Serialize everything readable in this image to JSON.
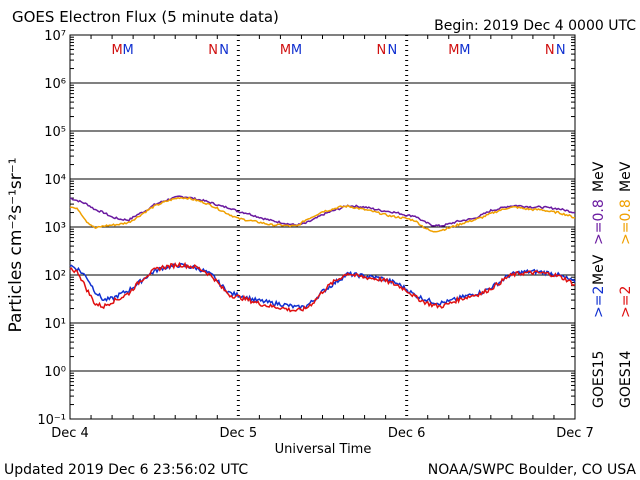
{
  "header": {
    "title": "GOES Electron Flux (5 minute data)",
    "begin": "Begin: 2019 Dec 4 0000 UTC"
  },
  "footer": {
    "updated": "Updated 2019 Dec  6 23:56:02 UTC",
    "credit": "NOAA/SWPC Boulder, CO USA"
  },
  "axes": {
    "ylabel": "Particles cm⁻²s⁻¹sr⁻¹",
    "xlabel": "Universal Time",
    "xticks": [
      "Dec 4",
      "Dec 5",
      "Dec 6",
      "Dec 7"
    ]
  },
  "markers": {
    "M": "M",
    "N": "N",
    "colors": [
      "#d01010",
      "#1030d0"
    ]
  },
  "legend": {
    "goes15": "GOES15",
    "goes14": "GOES14",
    "e2_15": ">=2",
    "e2_14": ">=2",
    "mev2": "MeV",
    "e08_15": ">=0.8",
    "e08_14": ">=0.8",
    "mev08": "MeV"
  },
  "colors": {
    "goes15_08": "#6a1aa0",
    "goes14_08": "#f0a000",
    "goes15_2": "#1030d0",
    "goes14_2": "#e01010",
    "threshold": "#000000"
  },
  "chart_data": {
    "type": "line",
    "title": "GOES Electron Flux (5 minute data)",
    "xlabel": "Universal Time",
    "ylabel": "Particles cm-2 s-1 sr-1",
    "yscale": "log",
    "ylim": [
      0.1,
      10000000
    ],
    "xlim_days": [
      0,
      3
    ],
    "x_tick_labels": [
      "Dec 4",
      "Dec 5",
      "Dec 6",
      "Dec 7"
    ],
    "y_tick_labels": [
      "10⁻¹",
      "10⁰",
      "10¹",
      "10²",
      "10³",
      "10⁴",
      "10⁵",
      "10⁶",
      "10⁷"
    ],
    "threshold": 1000,
    "x": [
      0,
      0.05,
      0.1,
      0.15,
      0.2,
      0.25,
      0.3,
      0.35,
      0.4,
      0.45,
      0.5,
      0.55,
      0.6,
      0.65,
      0.7,
      0.75,
      0.8,
      0.85,
      0.9,
      0.95,
      1.0,
      1.05,
      1.1,
      1.15,
      1.2,
      1.25,
      1.3,
      1.35,
      1.4,
      1.45,
      1.5,
      1.55,
      1.6,
      1.65,
      1.7,
      1.75,
      1.8,
      1.85,
      1.9,
      1.95,
      2.0,
      2.05,
      2.1,
      2.15,
      2.2,
      2.25,
      2.3,
      2.35,
      2.4,
      2.45,
      2.5,
      2.55,
      2.6,
      2.65,
      2.7,
      2.75,
      2.8,
      2.85,
      2.9,
      2.95,
      3.0
    ],
    "series": [
      {
        "name": "GOES15 >=0.8 MeV",
        "values": [
          4000,
          3500,
          3000,
          2300,
          2000,
          1600,
          1450,
          1400,
          1800,
          2200,
          2900,
          3400,
          3900,
          4300,
          4200,
          3800,
          3500,
          3100,
          2700,
          2500,
          2100,
          1950,
          1700,
          1500,
          1350,
          1250,
          1150,
          1100,
          1200,
          1450,
          1800,
          2100,
          2400,
          2800,
          2700,
          2600,
          2400,
          2200,
          2100,
          1950,
          1750,
          1700,
          1300,
          1100,
          1050,
          1150,
          1300,
          1400,
          1500,
          1800,
          2200,
          2400,
          2700,
          2800,
          2700,
          2600,
          2600,
          2500,
          2400,
          2200,
          2000
        ]
      },
      {
        "name": "GOES14 >=0.8 MeV",
        "values": [
          2700,
          2300,
          1300,
          950,
          1050,
          1100,
          1150,
          1250,
          1600,
          2100,
          2700,
          3200,
          3700,
          4100,
          4000,
          3600,
          3200,
          2700,
          2200,
          1800,
          1500,
          1400,
          1300,
          1200,
          1100,
          1100,
          1050,
          1050,
          1400,
          1700,
          2100,
          2300,
          2600,
          2700,
          2500,
          2300,
          2100,
          1900,
          1700,
          1600,
          1500,
          1350,
          1000,
          800,
          850,
          950,
          1100,
          1250,
          1400,
          1600,
          1900,
          2200,
          2500,
          2600,
          2400,
          2300,
          2300,
          2100,
          2000,
          1800,
          1550
        ]
      },
      {
        "name": "GOES15 >=2 MeV",
        "values": [
          160,
          130,
          90,
          45,
          30,
          32,
          40,
          48,
          65,
          90,
          120,
          140,
          150,
          160,
          150,
          140,
          120,
          95,
          60,
          42,
          38,
          34,
          30,
          28,
          26,
          25,
          23,
          21,
          22,
          30,
          45,
          60,
          80,
          105,
          100,
          95,
          90,
          85,
          75,
          65,
          50,
          38,
          32,
          28,
          26,
          28,
          32,
          36,
          40,
          44,
          55,
          70,
          95,
          110,
          115,
          118,
          115,
          110,
          100,
          85,
          70
        ]
      },
      {
        "name": "GOES14 >=2 MeV",
        "values": [
          140,
          110,
          50,
          25,
          22,
          28,
          33,
          42,
          65,
          95,
          125,
          145,
          155,
          165,
          155,
          145,
          120,
          90,
          55,
          38,
          35,
          31,
          27,
          24,
          22,
          21,
          19,
          18,
          20,
          28,
          45,
          65,
          85,
          110,
          95,
          90,
          85,
          80,
          70,
          60,
          48,
          35,
          28,
          24,
          22,
          25,
          30,
          34,
          38,
          42,
          52,
          68,
          92,
          105,
          110,
          112,
          110,
          105,
          95,
          80,
          62
        ]
      }
    ]
  }
}
